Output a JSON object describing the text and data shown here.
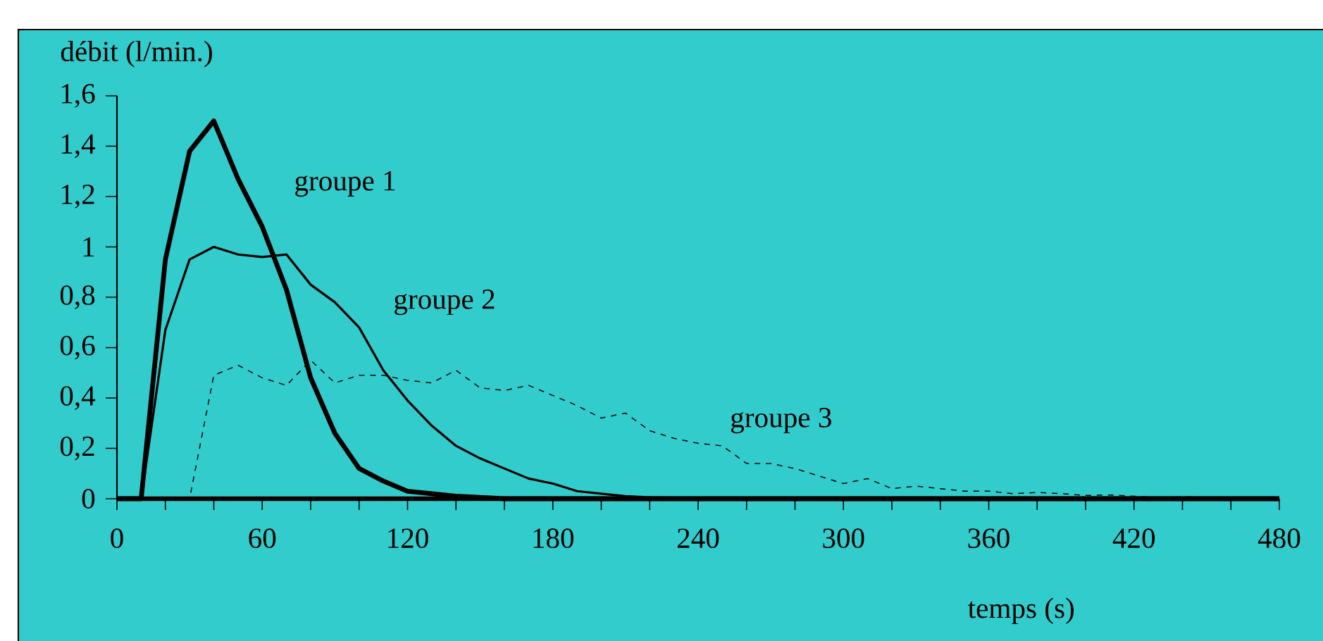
{
  "chart_data": {
    "type": "line",
    "xlabel": "temps (s)",
    "ylabel": "débit (l/min.)",
    "x": [
      0,
      10,
      20,
      30,
      40,
      50,
      60,
      70,
      80,
      90,
      100,
      110,
      120,
      130,
      140,
      150,
      160,
      170,
      180,
      190,
      200,
      210,
      220,
      230,
      240,
      250,
      260,
      270,
      280,
      290,
      300,
      310,
      320,
      330,
      340,
      350,
      360,
      370,
      380,
      390,
      400,
      410,
      420,
      430,
      440,
      450,
      460,
      470,
      480
    ],
    "series": [
      {
        "name": "groupe 1",
        "color": "#000000",
        "line_style": "solid",
        "values": [
          0,
          0,
          0.95,
          1.38,
          1.5,
          1.27,
          1.08,
          0.83,
          0.48,
          0.26,
          0.12,
          0.07,
          0.03,
          0.02,
          0.01,
          0.005,
          0,
          0,
          0,
          0,
          0,
          0,
          0,
          0,
          0,
          0,
          0,
          0,
          0,
          0,
          0,
          0,
          0,
          0,
          0,
          0,
          0,
          0,
          0,
          0,
          0,
          0,
          0,
          0,
          0,
          0,
          0,
          0,
          0
        ]
      },
      {
        "name": "groupe 2",
        "color": "#000000",
        "line_style": "solid",
        "values": [
          0,
          0,
          0.67,
          0.95,
          1.0,
          0.97,
          0.96,
          0.97,
          0.85,
          0.78,
          0.68,
          0.51,
          0.39,
          0.29,
          0.21,
          0.16,
          0.12,
          0.08,
          0.06,
          0.03,
          0.02,
          0.01,
          0.005,
          0.003,
          0,
          0,
          0,
          0,
          0,
          0,
          0,
          0,
          0,
          0,
          0,
          0,
          0,
          0,
          0,
          0,
          0,
          0,
          0,
          0,
          0,
          0,
          0,
          0,
          0
        ]
      },
      {
        "name": "groupe 3",
        "color": "#000000",
        "line_style": "dashed",
        "values": [
          0,
          0,
          0,
          0,
          0.49,
          0.53,
          0.48,
          0.45,
          0.55,
          0.46,
          0.49,
          0.49,
          0.47,
          0.46,
          0.51,
          0.44,
          0.43,
          0.45,
          0.41,
          0.37,
          0.32,
          0.34,
          0.27,
          0.24,
          0.22,
          0.21,
          0.14,
          0.14,
          0.12,
          0.09,
          0.06,
          0.08,
          0.04,
          0.05,
          0.04,
          0.03,
          0.03,
          0.02,
          0.025,
          0.02,
          0.013,
          0.015,
          0.01,
          0.005,
          0.008,
          0.005,
          0,
          0,
          0
        ]
      }
    ],
    "xlim": [
      0,
      480
    ],
    "xticks": [
      0,
      {
        "value": 20,
        "label": null
      },
      {
        "value": 40,
        "label": null
      },
      60,
      {
        "value": 80,
        "label": null
      },
      {
        "value": 100,
        "label": null
      },
      120,
      {
        "value": 140,
        "label": null
      },
      {
        "value": 160,
        "label": null
      },
      180,
      {
        "value": 200,
        "label": null
      },
      {
        "value": 220,
        "label": null
      },
      240,
      {
        "value": 260,
        "label": null
      },
      {
        "value": 280,
        "label": null
      },
      300,
      {
        "value": 320,
        "label": null
      },
      {
        "value": 340,
        "label": null
      },
      360,
      {
        "value": 380,
        "label": null
      },
      {
        "value": 400,
        "label": null
      },
      420,
      {
        "value": 440,
        "label": null
      },
      {
        "value": 460,
        "label": null
      },
      480
    ],
    "ylim": [
      0,
      1.6
    ],
    "yticks": [
      0,
      {
        "value": 0.2,
        "label": "0,2"
      },
      {
        "value": 0.4,
        "label": "0,4"
      },
      {
        "value": 0.6,
        "label": "0,6"
      },
      {
        "value": 0.8,
        "label": "0,8"
      },
      1,
      {
        "value": 1.2,
        "label": "1,2"
      },
      {
        "value": 1.4,
        "label": "1,4"
      },
      {
        "value": 1.6,
        "label": "1,6"
      }
    ]
  }
}
